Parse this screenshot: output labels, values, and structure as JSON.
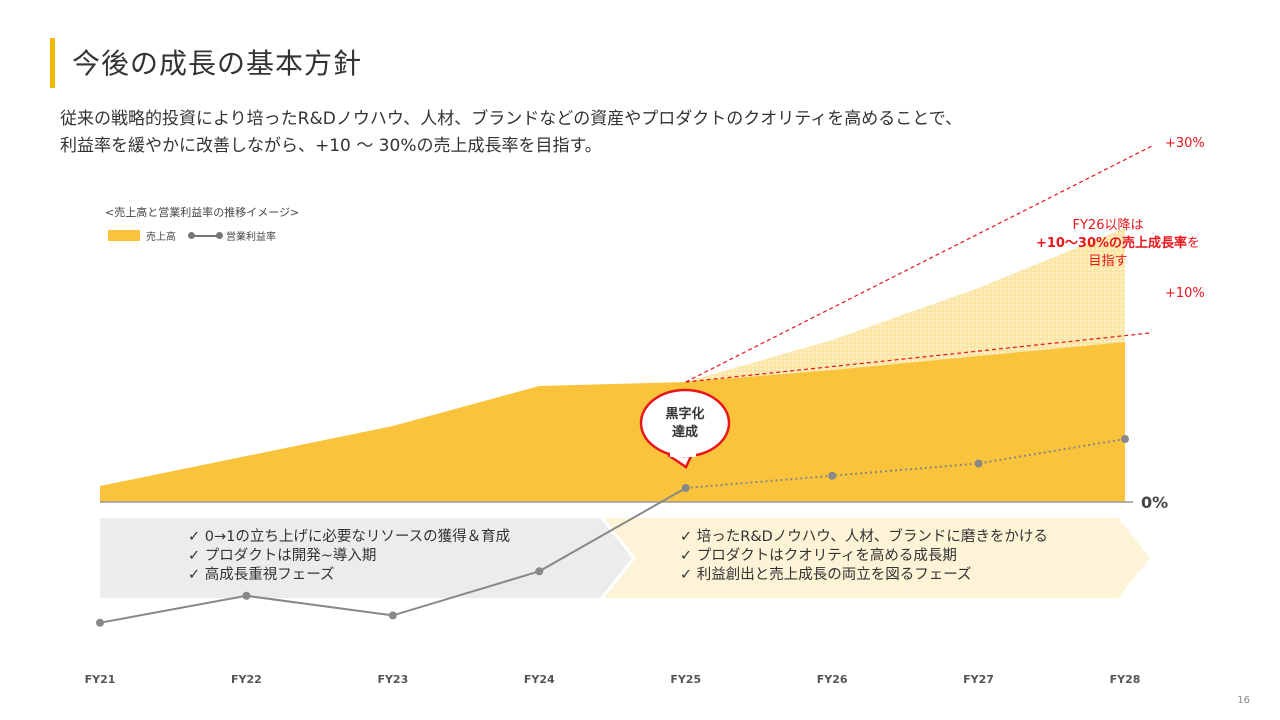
{
  "page": {
    "title": "今後の成長の基本方針",
    "lead": [
      "従来の戦略的投資により培ったR&Dノウハウ、人材、ブランドなどの資産やプロダクトのクオリティを高めることで、",
      "利益率を緩やかに改善しながら、+10 〜 30%の売上成長率を目指す。"
    ],
    "page_number": "16"
  },
  "colors": {
    "accent": "#f5b800",
    "revenue_fill": "#f9c43b",
    "scenario_fill": "#fbe6a6",
    "line": "#888888",
    "red": "#e8151b",
    "phase1_bg": "#ececec",
    "phase2_bg": "#fdf3d6"
  },
  "chart_data": {
    "type": "area",
    "title": "<売上高と営業利益率の推移イメージ>",
    "legend": {
      "revenue": "売上高",
      "margin": "営業利益率"
    },
    "categories": [
      "FY21",
      "FY22",
      "FY23",
      "FY24",
      "FY25",
      "FY26",
      "FY27",
      "FY28"
    ],
    "revenue_index": [
      8,
      23,
      38,
      58,
      60,
      66,
      73,
      80
    ],
    "revenue_upper_index": [
      null,
      null,
      null,
      null,
      60,
      81,
      107,
      137
    ],
    "revenue_lower_index": [
      null,
      null,
      null,
      null,
      60,
      66,
      73,
      80
    ],
    "margin_index": [
      -55,
      -44,
      -52,
      -34,
      0,
      5,
      10,
      20
    ],
    "zero_label": "0%",
    "upper_label": "+30%",
    "lower_label": "+10%",
    "callout": [
      "黒字化",
      "達成"
    ],
    "annotation": {
      "line1": "FY26以降は",
      "line2_bold": "+10〜30%の売上成長率",
      "line2_tail": "を",
      "line3": "目指す"
    },
    "phases": [
      {
        "items": [
          "✓ 0→1の立ち上げに必要なリソースの獲得＆育成",
          "✓ プロダクトは開発~導入期",
          "✓ 高成長重視フェーズ"
        ]
      },
      {
        "items": [
          "✓ 培ったR&Dノウハウ、人材、ブランドに磨きをかける",
          "✓ プロダクトはクオリティを高める成長期",
          "✓ 利益創出と売上成長の両立を図るフェーズ"
        ]
      }
    ]
  }
}
